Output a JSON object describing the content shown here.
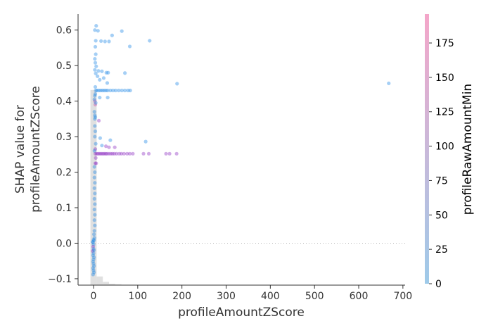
{
  "chart_data": {
    "type": "scatter",
    "title": "",
    "xlabel": "profileAmountZScore",
    "ylabel_lines": [
      "SHAP value for",
      "profileAmountZScore"
    ],
    "xlim": [
      -35,
      705
    ],
    "ylim": [
      -0.118,
      0.645
    ],
    "x_ticks": [
      0,
      100,
      200,
      300,
      400,
      500,
      600,
      700
    ],
    "y_ticks": [
      -0.1,
      0.0,
      0.1,
      0.2,
      0.3,
      0.4,
      0.5,
      0.6
    ],
    "y_tick_labels": [
      "−0.1",
      "0.0",
      "0.1",
      "0.2",
      "0.3",
      "0.4",
      "0.5",
      "0.6"
    ],
    "zero_line": true,
    "grid": false,
    "colorbar": {
      "label": "profileRawAmountMin",
      "range": [
        0,
        196
      ],
      "ticks": [
        0,
        25,
        50,
        75,
        100,
        125,
        150,
        175
      ],
      "color_low": "#9ecae9",
      "color_high": "#f4a6c9"
    },
    "point_colors": {
      "low": "#1f86e6",
      "mid": "#8c2cc0",
      "high": "#d04aa5"
    },
    "histogram": {
      "color": "#e0e0e0",
      "bins": [
        {
          "x0": -7,
          "x1": 7,
          "height": 0.72
        },
        {
          "x0": 7,
          "x1": 21,
          "height": 0.032
        },
        {
          "x0": 21,
          "x1": 35,
          "height": 0.012
        },
        {
          "x0": 35,
          "x1": 49,
          "height": 0.005
        },
        {
          "x0": 49,
          "x1": 63,
          "height": 0.003
        }
      ]
    },
    "points": [
      [
        6,
        0.612,
        "low"
      ],
      [
        3,
        0.6,
        "low"
      ],
      [
        5,
        0.57,
        "low"
      ],
      [
        4,
        0.553,
        "low"
      ],
      [
        5,
        0.532,
        "low"
      ],
      [
        3,
        0.519,
        "low"
      ],
      [
        4,
        0.508,
        "low"
      ],
      [
        6,
        0.498,
        "low"
      ],
      [
        3,
        0.488,
        "low"
      ],
      [
        5,
        0.478,
        "low"
      ],
      [
        10,
        0.598,
        "low"
      ],
      [
        17,
        0.569,
        "low"
      ],
      [
        26,
        0.568,
        "low"
      ],
      [
        35,
        0.568,
        "low"
      ],
      [
        42,
        0.585,
        "low"
      ],
      [
        64,
        0.597,
        "low"
      ],
      [
        82,
        0.554,
        "low"
      ],
      [
        127,
        0.57,
        "low"
      ],
      [
        11,
        0.485,
        "low"
      ],
      [
        19,
        0.484,
        "low"
      ],
      [
        29,
        0.48,
        "low"
      ],
      [
        33,
        0.48,
        "low"
      ],
      [
        71,
        0.479,
        "low"
      ],
      [
        9,
        0.47,
        "low"
      ],
      [
        14,
        0.46,
        "low"
      ],
      [
        23,
        0.465,
        "low"
      ],
      [
        31,
        0.451,
        "low"
      ],
      [
        189,
        0.449,
        "low"
      ],
      [
        668,
        0.45,
        "low"
      ],
      [
        4,
        0.44,
        "low"
      ],
      [
        5,
        0.43,
        "low"
      ],
      [
        8,
        0.43,
        "low"
      ],
      [
        12,
        0.43,
        "low"
      ],
      [
        16,
        0.43,
        "low"
      ],
      [
        20,
        0.43,
        "low"
      ],
      [
        24,
        0.43,
        "low"
      ],
      [
        28,
        0.43,
        "low"
      ],
      [
        32,
        0.43,
        "low"
      ],
      [
        38,
        0.43,
        "low"
      ],
      [
        44,
        0.43,
        "low"
      ],
      [
        50,
        0.43,
        "low"
      ],
      [
        57,
        0.43,
        "low"
      ],
      [
        64,
        0.43,
        "low"
      ],
      [
        71,
        0.43,
        "low"
      ],
      [
        78,
        0.43,
        "low"
      ],
      [
        83,
        0.43,
        "low"
      ],
      [
        14,
        0.41,
        "low"
      ],
      [
        32,
        0.41,
        "low"
      ],
      [
        4,
        0.42,
        "low"
      ],
      [
        3,
        0.4,
        "high"
      ],
      [
        4,
        0.39,
        "high"
      ],
      [
        2,
        0.405,
        "low"
      ],
      [
        3,
        0.415,
        "low"
      ],
      [
        5,
        0.395,
        "low"
      ],
      [
        2,
        0.37,
        "low"
      ],
      [
        3,
        0.36,
        "low"
      ],
      [
        4,
        0.355,
        "low"
      ],
      [
        3,
        0.35,
        "low"
      ],
      [
        12,
        0.345,
        "mid"
      ],
      [
        3,
        0.33,
        "low"
      ],
      [
        4,
        0.315,
        "low"
      ],
      [
        3,
        0.3,
        "low"
      ],
      [
        15,
        0.296,
        "low"
      ],
      [
        38,
        0.29,
        "low"
      ],
      [
        118,
        0.286,
        "low"
      ],
      [
        5,
        0.28,
        "low"
      ],
      [
        19,
        0.275,
        "low"
      ],
      [
        28,
        0.273,
        "mid"
      ],
      [
        35,
        0.27,
        "mid"
      ],
      [
        48,
        0.27,
        "mid"
      ],
      [
        4,
        0.265,
        "mid"
      ],
      [
        2,
        0.26,
        "low"
      ],
      [
        4,
        0.252,
        "mid"
      ],
      [
        7,
        0.252,
        "mid"
      ],
      [
        10,
        0.252,
        "mid"
      ],
      [
        13,
        0.252,
        "mid"
      ],
      [
        16,
        0.252,
        "mid"
      ],
      [
        19,
        0.252,
        "mid"
      ],
      [
        22,
        0.252,
        "mid"
      ],
      [
        25,
        0.252,
        "mid"
      ],
      [
        28,
        0.252,
        "mid"
      ],
      [
        31,
        0.252,
        "mid"
      ],
      [
        35,
        0.252,
        "mid"
      ],
      [
        39,
        0.252,
        "mid"
      ],
      [
        43,
        0.252,
        "mid"
      ],
      [
        47,
        0.252,
        "mid"
      ],
      [
        52,
        0.252,
        "mid"
      ],
      [
        58,
        0.252,
        "mid"
      ],
      [
        63,
        0.252,
        "mid"
      ],
      [
        69,
        0.252,
        "mid"
      ],
      [
        76,
        0.252,
        "mid"
      ],
      [
        82,
        0.252,
        "mid"
      ],
      [
        89,
        0.252,
        "mid"
      ],
      [
        113,
        0.252,
        "mid"
      ],
      [
        125,
        0.252,
        "mid"
      ],
      [
        164,
        0.252,
        "mid"
      ],
      [
        172,
        0.252,
        "mid"
      ],
      [
        188,
        0.252,
        "mid"
      ],
      [
        5,
        0.24,
        "mid"
      ],
      [
        4,
        0.225,
        "mid"
      ],
      [
        6,
        0.225,
        "mid"
      ],
      [
        2,
        0.215,
        "low"
      ],
      [
        3,
        0.2,
        "low"
      ],
      [
        2,
        0.185,
        "low"
      ],
      [
        3,
        0.17,
        "low"
      ],
      [
        2,
        0.155,
        "low"
      ],
      [
        3,
        0.14,
        "low"
      ],
      [
        2,
        0.125,
        "low"
      ],
      [
        3,
        0.11,
        "low"
      ],
      [
        2,
        0.095,
        "low"
      ],
      [
        3,
        0.08,
        "low"
      ],
      [
        2,
        0.065,
        "low"
      ],
      [
        3,
        0.05,
        "low"
      ],
      [
        2,
        0.035,
        "low"
      ],
      [
        1,
        0.025,
        "low"
      ],
      [
        2,
        0.015,
        "low"
      ],
      [
        1,
        0.008,
        "low"
      ],
      [
        -1,
        0.002,
        "low"
      ],
      [
        0,
        -0.004,
        "low"
      ],
      [
        -1,
        -0.01,
        "mid"
      ],
      [
        0,
        -0.016,
        "low"
      ],
      [
        -2,
        -0.022,
        "mid"
      ],
      [
        0,
        -0.028,
        "low"
      ],
      [
        -1,
        -0.034,
        "low"
      ],
      [
        1,
        -0.04,
        "low"
      ],
      [
        0,
        -0.046,
        "low"
      ],
      [
        -1,
        -0.052,
        "low"
      ],
      [
        0,
        -0.058,
        "low"
      ],
      [
        1,
        -0.064,
        "low"
      ],
      [
        -1,
        -0.07,
        "low"
      ],
      [
        0,
        -0.076,
        "low"
      ],
      [
        1,
        -0.082,
        "low"
      ],
      [
        -1,
        -0.088,
        "low"
      ],
      [
        0,
        0.01,
        "low"
      ],
      [
        1,
        -0.02,
        "low"
      ],
      [
        -2,
        0.004,
        "low"
      ]
    ]
  }
}
